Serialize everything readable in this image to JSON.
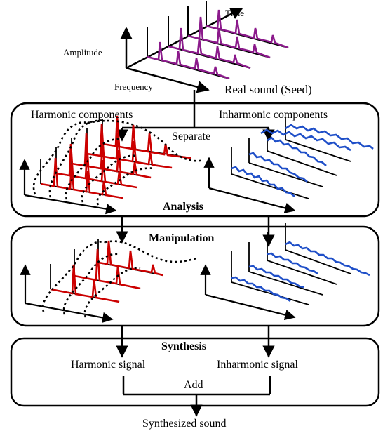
{
  "top": {
    "axis_time": "Time",
    "axis_amplitude": "Amplitude",
    "axis_frequency": "Frequency",
    "seed_caption": "Real sound (Seed)"
  },
  "analysis": {
    "harmonic_title": "Harmonic components",
    "inharmonic_title": "Inharmonic components",
    "separate_label": "Separate",
    "stage_label": "Analysis"
  },
  "manipulation": {
    "stage_label": "Manipulation"
  },
  "synthesis": {
    "stage_label": "Synthesis",
    "harmonic_signal": "Harmonic signal",
    "inharmonic_signal": "Inharmonic signal",
    "add_label": "Add"
  },
  "output": {
    "caption": "Synthesized sound"
  },
  "colors": {
    "seed_spectrum": "#8b1a8b",
    "harmonic": "#cc0000",
    "inharmonic": "#1f4fc8",
    "line": "#000000",
    "background": "#ffffff"
  }
}
